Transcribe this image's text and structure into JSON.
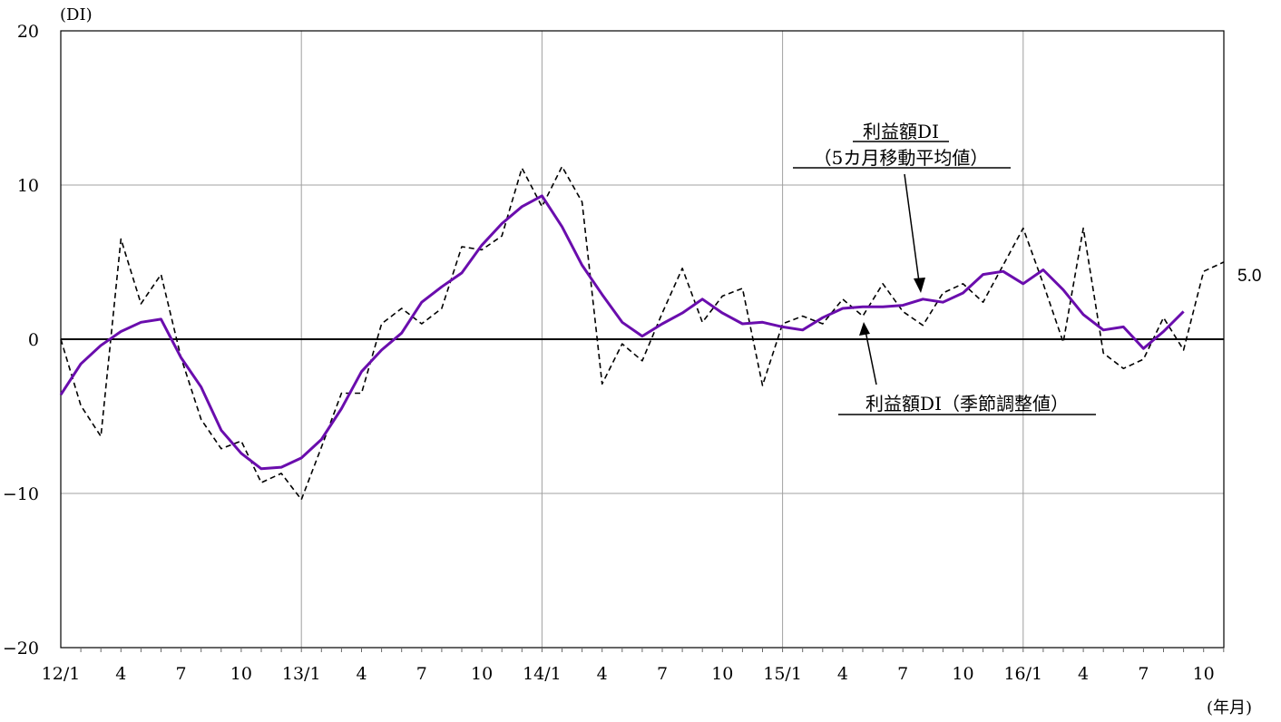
{
  "chart_data": {
    "type": "line",
    "y_unit_label": "(DI)",
    "x_unit_label": "(年月)",
    "ylim": [
      -20,
      20
    ],
    "yticks": [
      20,
      10,
      0,
      -10,
      -20
    ],
    "ytick_labels": [
      "20",
      "10",
      "0",
      "−10",
      "−20"
    ],
    "xtick_labels": [
      "12/1",
      "4",
      "7",
      "10",
      "13/1",
      "4",
      "7",
      "10",
      "14/1",
      "4",
      "7",
      "10",
      "15/1",
      "4",
      "7",
      "10",
      "16/1",
      "4",
      "7",
      "10"
    ],
    "grid": true,
    "series": [
      {
        "name": "利益額DI（季節調整値）",
        "style": "dashed",
        "color": "#000000",
        "values": [
          0,
          -4.3,
          -6.3,
          6.5,
          2.3,
          4.2,
          -1.2,
          -5.2,
          -7.1,
          -6.6,
          -9.3,
          -8.7,
          -10.4,
          -7.0,
          -3.5,
          -3.5,
          1.0,
          2.0,
          1.0,
          2.0,
          6.0,
          5.8,
          6.7,
          11.1,
          8.6,
          11.2,
          8.9,
          -2.9,
          -0.3,
          -1.4,
          1.7,
          4.6,
          1.1,
          2.8,
          3.3,
          -3.0,
          1.0,
          1.5,
          1.0,
          2.6,
          1.5,
          3.6,
          1.8,
          0.9,
          3.0,
          3.6,
          2.4,
          4.8,
          7.2,
          3.6,
          -0.2,
          7.2,
          -0.9,
          -1.9,
          -1.3,
          1.4,
          -0.7,
          4.4,
          5.0
        ]
      },
      {
        "name": "利益額DI（5カ月移動平均値）",
        "style": "solid",
        "color": "#6a0dad",
        "values": [
          -3.6,
          -1.6,
          -0.4,
          0.5,
          1.1,
          1.3,
          -1.2,
          -3.1,
          -5.9,
          -7.4,
          -8.4,
          -8.3,
          -7.7,
          -6.5,
          -4.5,
          -2.1,
          -0.7,
          0.4,
          2.4,
          3.4,
          4.3,
          6.1,
          7.5,
          8.6,
          9.3,
          7.3,
          4.8,
          2.9,
          1.1,
          0.2,
          1.0,
          1.7,
          2.6,
          1.7,
          1.0,
          1.1,
          0.8,
          0.6,
          1.4,
          2.0,
          2.1,
          2.1,
          2.2,
          2.6,
          2.4,
          3.0,
          4.2,
          4.4,
          3.6,
          4.5,
          3.2,
          1.6,
          0.6,
          0.8,
          -0.6,
          0.5,
          1.8
        ]
      }
    ],
    "end_label": "5.0",
    "annotations": {
      "ma_line1": "利益額DI",
      "ma_line2": "（5カ月移動平均値）",
      "sa_line": "利益額DI（季節調整値）"
    }
  }
}
